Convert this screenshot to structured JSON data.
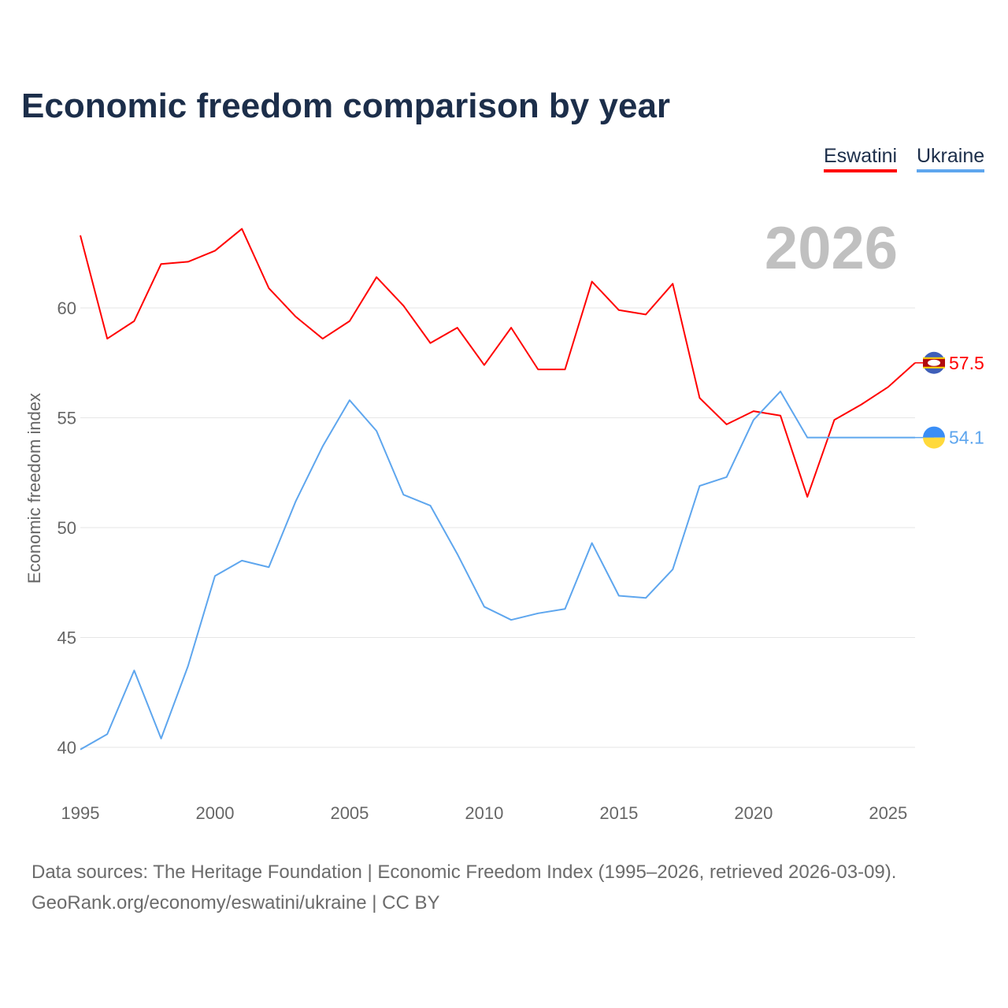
{
  "chart_data": {
    "type": "line",
    "title": "Economic freedom comparison by year",
    "xlabel": "",
    "ylabel": "Economic freedom index",
    "ylim": [
      38.5,
      64
    ],
    "xlim": [
      1995,
      2026
    ],
    "yticks": [
      40,
      45,
      50,
      55,
      60
    ],
    "xticks": [
      1995,
      2000,
      2005,
      2010,
      2015,
      2020,
      2025
    ],
    "grid": true,
    "legend_position": "top-right",
    "highlight_year": "2026",
    "x": [
      1995,
      1996,
      1997,
      1998,
      1999,
      2000,
      2001,
      2002,
      2003,
      2004,
      2005,
      2006,
      2007,
      2008,
      2009,
      2010,
      2011,
      2012,
      2013,
      2014,
      2015,
      2016,
      2017,
      2018,
      2019,
      2020,
      2021,
      2022,
      2023,
      2024,
      2025,
      2026
    ],
    "series": [
      {
        "name": "Eswatini",
        "color": "#ff0000",
        "end_label": "57.5",
        "values": [
          63.3,
          58.6,
          59.4,
          62.0,
          62.1,
          62.6,
          63.6,
          60.9,
          59.6,
          58.6,
          59.4,
          61.4,
          60.1,
          58.4,
          59.1,
          57.4,
          59.1,
          57.2,
          57.2,
          61.2,
          59.9,
          59.7,
          61.1,
          55.9,
          54.7,
          55.3,
          55.1,
          51.4,
          54.9,
          55.6,
          56.4,
          57.5
        ]
      },
      {
        "name": "Ukraine",
        "color": "#5ea6ee",
        "end_label": "54.1",
        "values": [
          39.9,
          40.6,
          43.5,
          40.4,
          43.7,
          47.8,
          48.5,
          48.2,
          51.2,
          53.7,
          55.8,
          54.4,
          51.5,
          51.0,
          48.8,
          46.4,
          45.8,
          46.1,
          46.3,
          49.3,
          46.9,
          46.8,
          48.1,
          51.9,
          52.3,
          54.9,
          56.2,
          54.1,
          54.1,
          54.1,
          54.1,
          54.1
        ]
      }
    ]
  },
  "footer": {
    "line1": "Data sources: The Heritage Foundation | Economic Freedom Index (1995–2026, retrieved 2026-03-09).",
    "line2": "GeoRank.org/economy/eswatini/ukraine | CC BY"
  }
}
